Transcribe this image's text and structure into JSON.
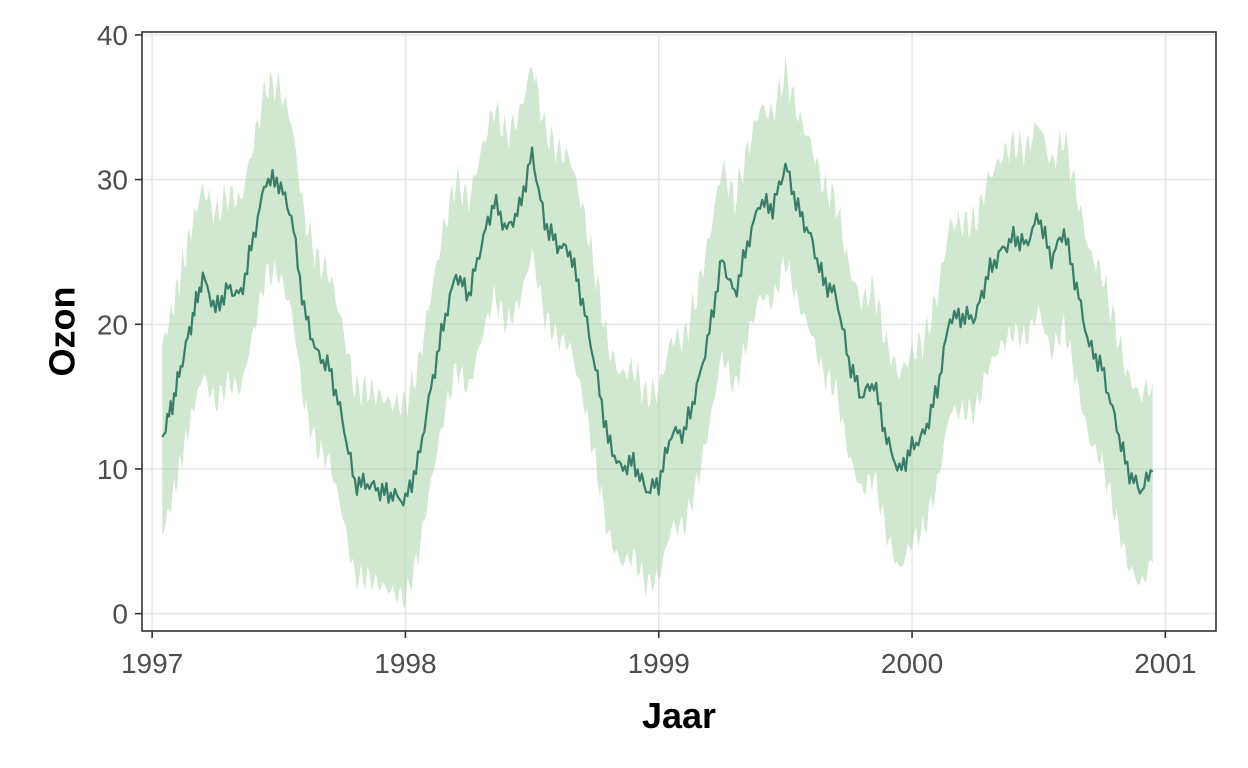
{
  "chart_data": {
    "type": "area",
    "xlabel": "Jaar",
    "ylabel": "Ozon",
    "xlim": [
      1996.96,
      2001.2
    ],
    "ylim": [
      -1.2,
      40.2
    ],
    "x_ticks": [
      1997,
      1998,
      1999,
      2000,
      2001
    ],
    "x_tick_labels": [
      "1997",
      "1998",
      "1999",
      "2000",
      "2001"
    ],
    "y_ticks": [
      0,
      10,
      20,
      30,
      40
    ],
    "y_tick_labels": [
      "0",
      "10",
      "20",
      "30",
      "40"
    ],
    "grid": true,
    "colors": {
      "line": "#3a7d6b",
      "band": "#a8d5a8",
      "grid": "#e6e6e6",
      "panel_border": "#333333",
      "axis_text": "#4d4d4d"
    },
    "series": [
      {
        "type": "line",
        "x": [
          1997.04,
          1997.08,
          1997.12,
          1997.16,
          1997.2,
          1997.25,
          1997.3,
          1997.35,
          1997.4,
          1997.45,
          1997.5,
          1997.55,
          1997.6,
          1997.65,
          1997.7,
          1997.75,
          1997.8,
          1997.85,
          1997.9,
          1997.95,
          1998.0,
          1998.05,
          1998.1,
          1998.15,
          1998.2,
          1998.25,
          1998.3,
          1998.35,
          1998.4,
          1998.45,
          1998.5,
          1998.55,
          1998.6,
          1998.65,
          1998.7,
          1998.75,
          1998.8,
          1998.85,
          1998.9,
          1998.95,
          1999.0,
          1999.05,
          1999.1,
          1999.15,
          1999.2,
          1999.25,
          1999.3,
          1999.35,
          1999.4,
          1999.45,
          1999.5,
          1999.55,
          1999.6,
          1999.65,
          1999.7,
          1999.75,
          1999.8,
          1999.85,
          1999.9,
          1999.95,
          2000.0,
          2000.05,
          2000.1,
          2000.15,
          2000.2,
          2000.25,
          2000.3,
          2000.35,
          2000.4,
          2000.45,
          2000.5,
          2000.55,
          2000.6,
          2000.65,
          2000.7,
          2000.75,
          2000.8,
          2000.85,
          2000.9,
          2000.95
        ],
        "y": [
          12.2,
          14.5,
          17.5,
          20.5,
          23.3,
          21.0,
          22.5,
          22.0,
          26.0,
          30.0,
          29.8,
          27.5,
          21.0,
          18.0,
          17.0,
          13.5,
          9.0,
          9.0,
          8.5,
          8.2,
          7.8,
          10.5,
          15.5,
          20.0,
          23.5,
          22.0,
          25.5,
          28.5,
          26.5,
          28.0,
          31.8,
          27.0,
          25.5,
          25.0,
          21.5,
          17.0,
          12.0,
          10.0,
          10.5,
          8.5,
          9.0,
          12.5,
          12.5,
          15.5,
          19.5,
          24.5,
          22.0,
          25.5,
          28.5,
          28.0,
          31.0,
          28.0,
          26.0,
          23.0,
          22.0,
          17.5,
          15.0,
          16.0,
          12.0,
          9.8,
          11.5,
          12.5,
          15.5,
          20.5,
          20.5,
          20.5,
          23.5,
          25.0,
          26.0,
          25.5,
          27.5,
          24.5,
          26.5,
          22.5,
          18.5,
          17.0,
          13.5,
          10.0,
          8.5,
          9.8
        ]
      },
      {
        "type": "band",
        "x": [
          1997.04,
          1997.08,
          1997.12,
          1997.16,
          1997.2,
          1997.25,
          1997.3,
          1997.35,
          1997.4,
          1997.45,
          1997.5,
          1997.55,
          1997.6,
          1997.65,
          1997.7,
          1997.75,
          1997.8,
          1997.85,
          1997.9,
          1997.95,
          1998.0,
          1998.05,
          1998.1,
          1998.15,
          1998.2,
          1998.25,
          1998.3,
          1998.35,
          1998.4,
          1998.45,
          1998.5,
          1998.55,
          1998.6,
          1998.65,
          1998.7,
          1998.75,
          1998.8,
          1998.85,
          1998.9,
          1998.95,
          1999.0,
          1999.05,
          1999.1,
          1999.15,
          1999.2,
          1999.25,
          1999.3,
          1999.35,
          1999.4,
          1999.45,
          1999.5,
          1999.55,
          1999.6,
          1999.65,
          1999.7,
          1999.75,
          1999.8,
          1999.85,
          1999.9,
          1999.95,
          2000.0,
          2000.05,
          2000.1,
          2000.15,
          2000.2,
          2000.25,
          2000.3,
          2000.35,
          2000.4,
          2000.45,
          2000.5,
          2000.55,
          2000.6,
          2000.65,
          2000.7,
          2000.75,
          2000.8,
          2000.85,
          2000.9,
          2000.95
        ],
        "lower": [
          5.5,
          8.0,
          11.0,
          14.0,
          16.5,
          14.5,
          16.0,
          15.5,
          19.5,
          23.5,
          23.5,
          21.0,
          14.5,
          11.5,
          10.5,
          7.0,
          2.5,
          2.5,
          2.0,
          1.5,
          1.0,
          4.0,
          9.0,
          13.5,
          17.0,
          15.5,
          19.0,
          22.0,
          20.0,
          21.5,
          25.0,
          20.5,
          19.0,
          18.5,
          15.0,
          10.5,
          5.5,
          3.5,
          4.0,
          2.0,
          2.5,
          6.0,
          6.0,
          9.0,
          13.0,
          18.0,
          15.5,
          19.0,
          22.0,
          21.5,
          24.5,
          21.5,
          19.5,
          16.5,
          15.5,
          11.0,
          8.5,
          9.5,
          5.5,
          3.0,
          5.0,
          6.0,
          9.0,
          14.0,
          14.0,
          14.0,
          17.0,
          18.5,
          19.5,
          19.0,
          21.0,
          18.0,
          20.0,
          16.0,
          12.0,
          10.5,
          7.0,
          3.5,
          2.0,
          3.5
        ],
        "upper": [
          18.5,
          21.0,
          24.0,
          27.0,
          29.5,
          27.5,
          29.0,
          28.5,
          32.5,
          36.5,
          36.5,
          34.0,
          27.5,
          24.5,
          23.5,
          20.0,
          15.5,
          15.5,
          15.0,
          14.5,
          14.5,
          17.0,
          22.0,
          26.5,
          30.0,
          28.5,
          32.0,
          35.0,
          33.0,
          34.5,
          38.0,
          33.5,
          32.0,
          31.5,
          28.0,
          23.5,
          18.5,
          16.5,
          17.0,
          15.0,
          15.5,
          19.0,
          19.0,
          22.0,
          26.0,
          31.0,
          28.5,
          32.0,
          35.0,
          34.5,
          37.5,
          34.5,
          32.5,
          29.5,
          28.5,
          24.0,
          21.5,
          22.5,
          18.5,
          16.5,
          18.0,
          19.0,
          22.0,
          27.0,
          27.0,
          27.0,
          30.0,
          31.5,
          32.5,
          32.0,
          34.0,
          31.0,
          33.0,
          29.0,
          25.0,
          23.5,
          20.0,
          16.5,
          15.0,
          16.0
        ]
      }
    ]
  }
}
